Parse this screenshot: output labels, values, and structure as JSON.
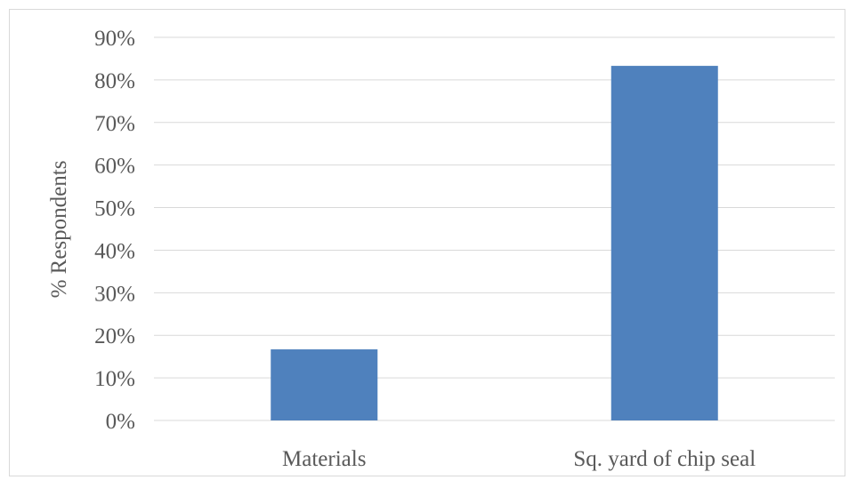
{
  "chart_data": {
    "type": "bar",
    "categories": [
      "Materials",
      "Sq. yard of chip seal"
    ],
    "values": [
      16.7,
      83.3
    ],
    "title": "",
    "xlabel": "",
    "ylabel": "% Respondents",
    "ylim": [
      0,
      90
    ],
    "yticks": [
      "0%",
      "10%",
      "20%",
      "30%",
      "40%",
      "50%",
      "60%",
      "70%",
      "80%",
      "90%"
    ],
    "grid": true,
    "legend": "none",
    "bar_color": "#4f81bd",
    "gridline_color": "#d9d9d9"
  }
}
